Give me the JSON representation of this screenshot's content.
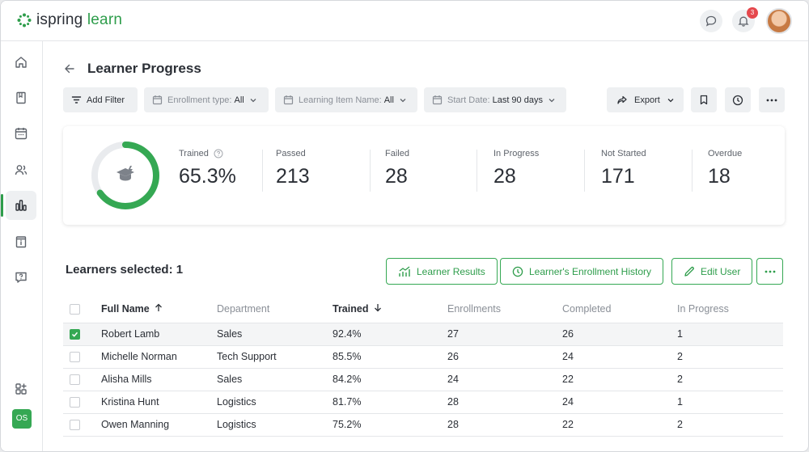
{
  "app": {
    "logo_text_a": "ispring",
    "logo_text_b": "learn",
    "notification_count": "3"
  },
  "page": {
    "title": "Learner Progress"
  },
  "filters": {
    "add_filter": "Add Filter",
    "enrollment_label": "Enrollment type:",
    "enrollment_value": "All",
    "learning_item_label": "Learning Item Name:",
    "learning_item_value": "All",
    "start_date_label": "Start Date:",
    "start_date_value": "Last 90 days",
    "export": "Export"
  },
  "stats": {
    "trained_label": "Trained",
    "trained_value": "65.3%",
    "trained_fraction": 0.653,
    "passed_label": "Passed",
    "passed_value": "213",
    "failed_label": "Failed",
    "failed_value": "28",
    "in_progress_label": "In Progress",
    "in_progress_value": "28",
    "not_started_label": "Not Started",
    "not_started_value": "171",
    "overdue_label": "Overdue",
    "overdue_value": "18"
  },
  "selection": {
    "text": "Learners selected: 1",
    "learner_results": "Learner Results",
    "enrollment_history": "Learner's Enrollment History",
    "edit_user": "Edit User"
  },
  "table": {
    "headers": [
      "Full Name",
      "Department",
      "Trained",
      "Enrollments",
      "Completed",
      "In Progress"
    ],
    "rows": [
      {
        "name": "Robert Lamb",
        "department": "Sales",
        "trained": "92.4%",
        "enrollments": "27",
        "completed": "26",
        "in_progress": "1",
        "checked": true
      },
      {
        "name": "Michelle Norman",
        "department": "Tech Support",
        "trained": "85.5%",
        "enrollments": "26",
        "completed": "24",
        "in_progress": "2",
        "checked": false
      },
      {
        "name": "Alisha Mills",
        "department": "Sales",
        "trained": "84.2%",
        "enrollments": "24",
        "completed": "22",
        "in_progress": "2",
        "checked": false
      },
      {
        "name": "Kristina Hunt",
        "department": "Logistics",
        "trained": "81.7%",
        "enrollments": "28",
        "completed": "24",
        "in_progress": "1",
        "checked": false
      },
      {
        "name": "Owen Manning",
        "department": "Logistics",
        "trained": "75.2%",
        "enrollments": "28",
        "completed": "22",
        "in_progress": "2",
        "checked": false
      }
    ]
  },
  "colors": {
    "accent": "#35a853",
    "ring_track": "#e9ebee"
  }
}
